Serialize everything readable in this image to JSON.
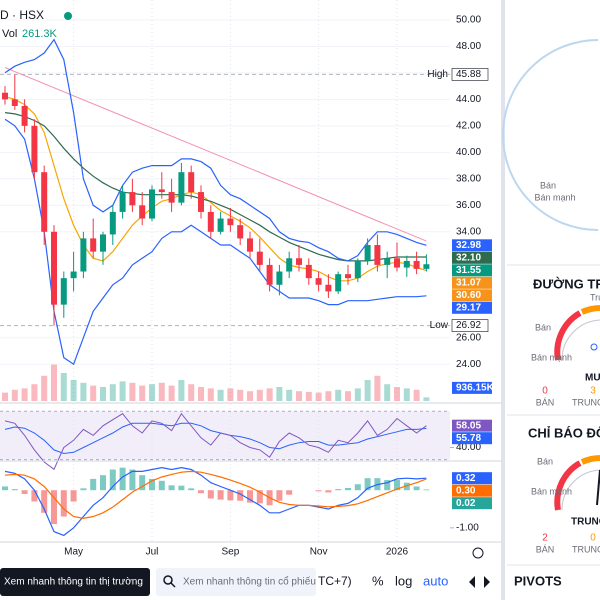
{
  "header": {
    "symbol": "D · HSX",
    "vol_label": "Vol",
    "vol_value": "261.3K"
  },
  "chart_data": {
    "type": "candlestick",
    "categories": [
      null,
      null,
      null,
      null,
      null,
      null,
      null,
      "May",
      null,
      null,
      null,
      null,
      null,
      null,
      null,
      "Jul",
      null,
      null,
      null,
      null,
      null,
      null,
      null,
      "Sep",
      null,
      null,
      null,
      null,
      null,
      null,
      null,
      null,
      "Nov",
      null,
      null,
      null,
      null,
      null,
      null,
      null,
      "2026",
      null,
      null,
      null
    ],
    "open": [
      44.5,
      44.0,
      43.5,
      42.0,
      38.5,
      34.0,
      28.5,
      30.5,
      31.0,
      33.5,
      32.5,
      33.8,
      35.5,
      37.0,
      36.0,
      35.0,
      37.2,
      37.0,
      36.2,
      38.5,
      37.0,
      35.5,
      34.0,
      35.0,
      34.5,
      33.5,
      32.5,
      31.5,
      30.0,
      31.0,
      32.0,
      31.5,
      30.5,
      30.0,
      29.5,
      30.8,
      30.5,
      31.8,
      33.0,
      31.5,
      32.0,
      31.3,
      31.8,
      31.2
    ],
    "high": [
      45.0,
      45.88,
      44.0,
      42.5,
      39.0,
      34.5,
      31.0,
      32.5,
      34.0,
      35.0,
      34.0,
      36.0,
      37.5,
      38.0,
      37.0,
      37.5,
      38.5,
      38.0,
      39.2,
      39.0,
      37.5,
      36.0,
      35.5,
      35.8,
      35.0,
      34.0,
      33.5,
      32.0,
      31.5,
      32.5,
      33.0,
      32.0,
      31.0,
      30.8,
      31.0,
      31.5,
      32.0,
      33.5,
      33.8,
      32.5,
      33.2,
      32.2,
      32.5,
      32.3
    ],
    "low": [
      43.6,
      43.2,
      41.5,
      38.0,
      33.0,
      26.92,
      27.5,
      29.5,
      30.5,
      32.0,
      31.5,
      33.0,
      35.0,
      35.5,
      34.5,
      34.8,
      36.5,
      35.5,
      36.0,
      36.5,
      35.0,
      33.5,
      33.8,
      34.0,
      33.0,
      32.0,
      31.0,
      29.5,
      29.2,
      30.5,
      31.0,
      30.0,
      29.5,
      29.0,
      29.3,
      30.0,
      30.2,
      31.5,
      31.0,
      30.5,
      31.0,
      30.6,
      30.8,
      31.0
    ],
    "close": [
      44.0,
      43.5,
      42.0,
      38.5,
      34.0,
      28.5,
      30.5,
      31.0,
      33.5,
      32.5,
      33.8,
      35.5,
      37.0,
      36.0,
      35.0,
      37.2,
      37.0,
      36.2,
      38.5,
      37.0,
      35.5,
      34.0,
      35.0,
      34.5,
      33.5,
      32.5,
      31.5,
      30.0,
      31.0,
      32.0,
      31.5,
      30.5,
      30.0,
      29.5,
      30.8,
      30.5,
      31.8,
      33.0,
      31.5,
      32.0,
      31.3,
      31.8,
      31.2,
      31.55
    ],
    "up_color": "#089981",
    "down_color": "#f23645",
    "ylim": [
      21.3,
      51.5
    ],
    "yticks": [
      {
        "value": 50,
        "label": "50.00"
      },
      {
        "value": 48,
        "label": "48.00"
      },
      {
        "value": 46,
        "label": "46.00"
      },
      {
        "value": 44,
        "label": "44.00"
      },
      {
        "value": 42,
        "label": "42.00"
      },
      {
        "value": 40,
        "label": "40.00"
      },
      {
        "value": 38,
        "label": "38.00"
      },
      {
        "value": 36,
        "label": "36.00"
      },
      {
        "value": 34,
        "label": "34.00"
      },
      {
        "value": 26,
        "label": "26.00"
      },
      {
        "value": 24,
        "label": "24.00"
      }
    ],
    "grid": true,
    "series": [
      {
        "color": "#f7a600",
        "values": [
          44.2,
          44.0,
          43.6,
          42.9,
          41.5,
          39.0,
          36.5,
          34.5,
          33.0,
          32.0,
          31.8,
          32.5,
          33.5,
          34.5,
          35.2,
          35.8,
          36.3,
          36.5,
          36.8,
          37.0,
          36.8,
          36.2,
          35.6,
          35.2,
          34.8,
          34.3,
          33.6,
          32.8,
          32.0,
          31.5,
          31.3,
          31.2,
          31.0,
          30.6,
          30.3,
          30.3,
          30.5,
          31.0,
          31.4,
          31.6,
          31.7,
          31.6,
          31.3,
          31.07
        ]
      },
      {
        "color": "#2e6b4f",
        "values": [
          43.0,
          42.9,
          42.7,
          42.4,
          42.0,
          41.2,
          40.3,
          39.5,
          38.8,
          38.2,
          37.7,
          37.3,
          37.0,
          36.9,
          36.8,
          36.8,
          36.8,
          36.8,
          36.8,
          36.7,
          36.5,
          36.3,
          36.0,
          35.7,
          35.3,
          34.9,
          34.5,
          34.0,
          33.6,
          33.2,
          32.9,
          32.6,
          32.3,
          32.1,
          31.9,
          31.8,
          31.8,
          31.8,
          31.9,
          32.0,
          32.1,
          32.1,
          32.1,
          32.1
        ]
      },
      {
        "color": "#2962ff",
        "values": [
          46,
          46.5,
          46.8,
          47,
          47.5,
          48.5,
          47,
          43,
          38,
          36,
          35.5,
          36,
          37.5,
          38.5,
          38.8,
          39,
          39,
          39,
          39.5,
          39.5,
          39.3,
          38.8,
          37.5,
          36.8,
          36.5,
          36,
          35.5,
          35,
          34,
          33.5,
          33.3,
          33.2,
          32.8,
          32.5,
          32.0,
          31.8,
          32.2,
          33.2,
          34,
          34,
          33.8,
          33.5,
          33.2,
          32.98
        ]
      },
      {
        "color": "#2962ff",
        "values": [
          42.5,
          42,
          41,
          38,
          34,
          28,
          24.5,
          24,
          26,
          28,
          29,
          30,
          30.5,
          31.5,
          32,
          32.5,
          33.5,
          34,
          34,
          34.5,
          34,
          33.5,
          33,
          33,
          32.5,
          32,
          31,
          30,
          29.5,
          29,
          29,
          29,
          28.8,
          28.5,
          28.5,
          28.8,
          28.8,
          28.8,
          28.9,
          29,
          29.1,
          29.1,
          29.1,
          29.17
        ]
      }
    ],
    "trendline": {
      "color": "#f48fb1",
      "values": [
        46.4,
        33.3
      ]
    },
    "high_marker": {
      "label": "High",
      "value": 45.88
    },
    "low_marker": {
      "label": "Low",
      "value": 26.92
    },
    "price_labels": [
      {
        "value": 32.98,
        "label": "32.98",
        "color": "#2962ff"
      },
      {
        "value": 32.1,
        "label": "32.10",
        "color": "#2e6b4f"
      },
      {
        "value": 31.55,
        "label": "31.55",
        "color": "#089981"
      },
      {
        "value": 31.07,
        "label": "31.07",
        "color": "#f7931a"
      },
      {
        "value": 30.6,
        "label": "30.60",
        "color": "#f7931a"
      },
      {
        "value": 29.17,
        "label": "29.17",
        "color": "#2962ff"
      }
    ],
    "volume": {
      "ylim": [
        0,
        4000
      ],
      "values": [
        600,
        800,
        900,
        1200,
        1800,
        2600,
        2000,
        1500,
        1300,
        1100,
        1000,
        1200,
        1400,
        1300,
        1100,
        1200,
        1300,
        1100,
        1500,
        1200,
        1000,
        900,
        800,
        900,
        800,
        700,
        800,
        900,
        1000,
        800,
        700,
        650,
        600,
        700,
        800,
        700,
        900,
        1500,
        1800,
        1200,
        1000,
        900,
        800,
        261.3
      ],
      "labels": [
        {
          "value": 936.15,
          "label": "936.15K",
          "color": "#2962ff"
        }
      ]
    },
    "rsi": {
      "ylim": [
        28,
        76
      ],
      "band": [
        30,
        70
      ],
      "band_color": "#7e57c2",
      "yticks": [
        {
          "value": 40,
          "label": "40.00"
        }
      ],
      "values": [
        62,
        60,
        50,
        38,
        28,
        22,
        40,
        46,
        55,
        50,
        58,
        63,
        68,
        58,
        52,
        62,
        60,
        54,
        68,
        58,
        48,
        42,
        52,
        50,
        44,
        40,
        38,
        32,
        45,
        52,
        48,
        42,
        40,
        36,
        46,
        44,
        52,
        62,
        50,
        55,
        64,
        58,
        52,
        58.05
      ],
      "signal": [
        55,
        57,
        56,
        52,
        46,
        38,
        35,
        36,
        40,
        44,
        48,
        52,
        57,
        60,
        60,
        60,
        59,
        58,
        60,
        60,
        58,
        54,
        52,
        50,
        49,
        47,
        44,
        40,
        39,
        42,
        44,
        45,
        45,
        42,
        42,
        43,
        44,
        47,
        49,
        51,
        53,
        55,
        55,
        55.78
      ],
      "color": "#7e57c2",
      "signal_color": "#2962ff",
      "labels": [
        {
          "value": 58.05,
          "label": "58.05",
          "color": "#7e57c2"
        },
        {
          "value": 55.78,
          "label": "55.78",
          "color": "#2962ff"
        }
      ]
    },
    "macd": {
      "ylim": [
        -1.35,
        0.75
      ],
      "yticks": [
        {
          "value": -1,
          "label": "-1.00"
        }
      ],
      "values": [
        0.5,
        0.45,
        0.3,
        0.0,
        -0.5,
        -1.1,
        -1.2,
        -1.0,
        -0.7,
        -0.4,
        -0.2,
        0.1,
        0.35,
        0.5,
        0.5,
        0.55,
        0.6,
        0.55,
        0.6,
        0.55,
        0.4,
        0.2,
        0.1,
        0.0,
        -0.1,
        -0.25,
        -0.4,
        -0.6,
        -0.6,
        -0.5,
        -0.4,
        -0.4,
        -0.45,
        -0.5,
        -0.4,
        -0.35,
        -0.2,
        0.05,
        0.15,
        0.2,
        0.3,
        0.32,
        0.3,
        0.32
      ],
      "signal": [
        0.4,
        0.42,
        0.4,
        0.3,
        0.1,
        -0.2,
        -0.5,
        -0.7,
        -0.75,
        -0.7,
        -0.6,
        -0.45,
        -0.25,
        -0.05,
        0.1,
        0.25,
        0.35,
        0.42,
        0.48,
        0.5,
        0.48,
        0.42,
        0.35,
        0.27,
        0.18,
        0.08,
        -0.05,
        -0.2,
        -0.32,
        -0.38,
        -0.4,
        -0.4,
        -0.42,
        -0.44,
        -0.43,
        -0.41,
        -0.36,
        -0.27,
        -0.17,
        -0.07,
        0.03,
        0.12,
        0.2,
        0.3
      ],
      "histogram": [
        0.1,
        0.03,
        -0.1,
        -0.3,
        -0.6,
        -0.9,
        -0.7,
        -0.3,
        0.05,
        0.3,
        0.4,
        0.55,
        0.6,
        0.55,
        0.4,
        0.3,
        0.25,
        0.13,
        0.12,
        0.05,
        -0.08,
        -0.22,
        -0.25,
        -0.27,
        -0.28,
        -0.33,
        -0.35,
        -0.4,
        -0.28,
        -0.12,
        0.0,
        0.0,
        -0.03,
        -0.06,
        0.03,
        0.06,
        0.16,
        0.32,
        0.32,
        0.27,
        0.27,
        0.2,
        0.1,
        0.02
      ],
      "color": "#2962ff",
      "signal_color": "#ff6d00",
      "labels": [
        {
          "value": 0.32,
          "label": "0.32",
          "color": "#2962ff"
        },
        {
          "value": 0.3,
          "label": "0.30",
          "color": "#ff6d00"
        },
        {
          "value": 0.02,
          "label": "0.02",
          "color": "#26a69a"
        }
      ]
    }
  },
  "toolbar": {
    "market_button": "Xem nhanh thông tin thị trường",
    "search_placeholder": "Xem nhanh thông tin cổ phiếu",
    "timezone": "TC+7)",
    "percent": "%",
    "log": "log",
    "auto": "auto"
  },
  "side_panel": {
    "top_gauge": {
      "label": "Bán mạnh"
    },
    "moving_averages": {
      "title": "ĐƯỜNG TRU",
      "neutral": "Trung",
      "sell": "Bán",
      "strong_sell": "Bán mạnh",
      "reading": "MUA",
      "sell_count": "0",
      "sell_label": "BÁN",
      "neutral_count": "3",
      "neutral_label": "TRUNG"
    },
    "oscillators": {
      "title": "CHỈ BÁO ĐỘN",
      "sell": "Bán",
      "strong_sell": "Bán mạnh",
      "reading": "TRUNG",
      "sell_count": "2",
      "sell_label": "BÁN",
      "neutral_count": "0",
      "neutral_label": "TRUNG"
    },
    "pivots": "PIVOTS"
  }
}
